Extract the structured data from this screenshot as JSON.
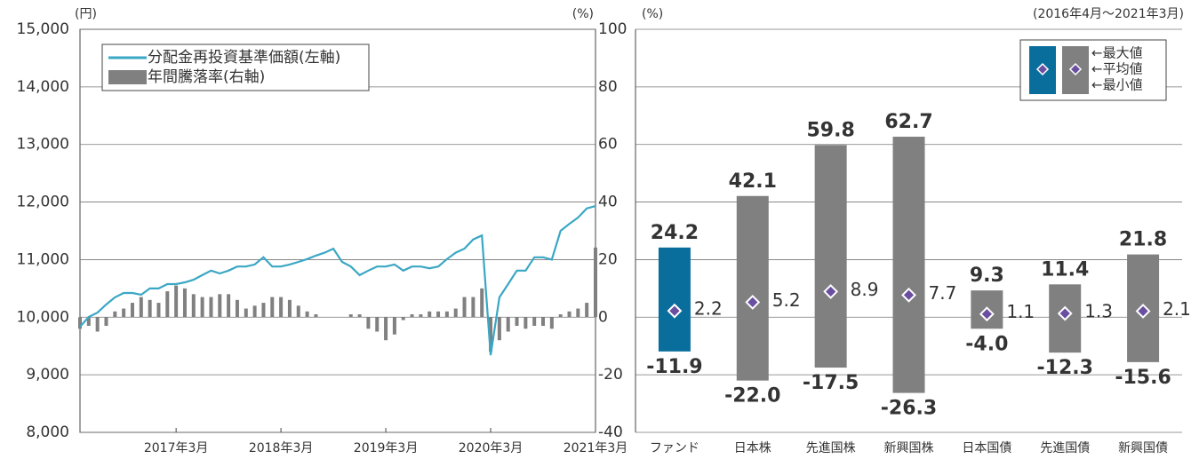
{
  "chart_data": [
    {
      "type": "line",
      "y_unit_label": "(円)",
      "y2_unit_label": "(%)",
      "x": [
        "2016-04",
        "2016-05",
        "2016-06",
        "2016-07",
        "2016-08",
        "2016-09",
        "2016-10",
        "2016-11",
        "2016-12",
        "2017-01",
        "2017-02",
        "2017-03",
        "2017-04",
        "2017-05",
        "2017-06",
        "2017-07",
        "2017-08",
        "2017-09",
        "2017-10",
        "2017-11",
        "2017-12",
        "2018-01",
        "2018-02",
        "2018-03",
        "2018-04",
        "2018-05",
        "2018-06",
        "2018-07",
        "2018-08",
        "2018-09",
        "2018-10",
        "2018-11",
        "2018-12",
        "2019-01",
        "2019-02",
        "2019-03",
        "2019-04",
        "2019-05",
        "2019-06",
        "2019-07",
        "2019-08",
        "2019-09",
        "2019-10",
        "2019-11",
        "2019-12",
        "2020-01",
        "2020-02",
        "2020-03",
        "2020-04",
        "2020-05",
        "2020-06",
        "2020-07",
        "2020-08",
        "2020-09",
        "2020-10",
        "2020-11",
        "2020-12",
        "2021-01",
        "2021-02",
        "2021-03"
      ],
      "xlim": [
        "2016-04",
        "2021-03"
      ],
      "xticks": [
        {
          "value": "2017-03",
          "label": "2017年3月"
        },
        {
          "value": "2018-03",
          "label": "2018年3月"
        },
        {
          "value": "2019-03",
          "label": "2019年3月"
        },
        {
          "value": "2020-03",
          "label": "2020年3月"
        },
        {
          "value": "2021-03",
          "label": "2021年3月"
        }
      ],
      "ylim": [
        8000,
        15000
      ],
      "yticks": [
        {
          "value": 8000,
          "label": "8,000"
        },
        {
          "value": 9000,
          "label": "9,000"
        },
        {
          "value": 10000,
          "label": "10,000"
        },
        {
          "value": 11000,
          "label": "11,000"
        },
        {
          "value": 12000,
          "label": "12,000"
        },
        {
          "value": 13000,
          "label": "13,000"
        },
        {
          "value": 14000,
          "label": "14,000"
        },
        {
          "value": 15000,
          "label": "15,000"
        }
      ],
      "y2lim": [
        -40,
        100
      ],
      "grid": true,
      "series": [
        {
          "name": "分配金再投資基準価額(左軸)",
          "type": "line",
          "color": "#3aa7c4",
          "values": [
            9835,
            10005,
            10080,
            10220,
            10345,
            10420,
            10420,
            10390,
            10500,
            10500,
            10575,
            10575,
            10605,
            10650,
            10730,
            10810,
            10760,
            10810,
            10880,
            10880,
            10915,
            11040,
            10880,
            10880,
            10915,
            10960,
            11010,
            11070,
            11120,
            11190,
            10960,
            10880,
            10730,
            10810,
            10880,
            10880,
            10915,
            10810,
            10880,
            10880,
            10850,
            10880,
            11010,
            11120,
            11190,
            11350,
            11420,
            9340,
            10345,
            10575,
            10810,
            10810,
            11040,
            11040,
            11000,
            11500,
            11620,
            11730,
            11890,
            11930
          ]
        },
        {
          "name": "年間騰落率(右軸)",
          "type": "bar",
          "axis": "y2",
          "color": "#808080",
          "values": [
            -4,
            -3,
            -5,
            -3,
            2,
            3,
            5,
            7,
            6,
            5,
            9,
            11,
            10,
            8,
            7,
            7,
            8,
            8,
            6,
            3,
            4,
            5,
            7,
            7,
            6,
            4,
            2,
            1,
            null,
            null,
            null,
            1,
            1,
            -4,
            -5,
            -8,
            -6,
            -1,
            1,
            1,
            2,
            2,
            2,
            3,
            7,
            7,
            10,
            -12,
            -8,
            -5,
            -3,
            -4,
            -3,
            -3,
            -4,
            1,
            2,
            3,
            5,
            24.2
          ]
        }
      ]
    },
    {
      "type": "range",
      "y_unit_label": "(%)",
      "subtitle": "(2016年4月～2021年3月)",
      "categories": [
        "ファンド",
        "日本株",
        "先進国株",
        "新興国株",
        "日本国債",
        "先進国債",
        "新興国債"
      ],
      "colors": [
        "#0a6e9c",
        "#808080",
        "#808080",
        "#808080",
        "#808080",
        "#808080",
        "#808080"
      ],
      "label_colors": [
        "#0a6e9c",
        "#707070",
        "#707070",
        "#707070",
        "#707070",
        "#707070",
        "#707070"
      ],
      "avg_label_colors": [
        "#4bb3cc",
        "#5b3a8c",
        "#5b3a8c",
        "#5b3a8c",
        "#5b3a8c",
        "#5b3a8c",
        "#5b3a8c"
      ],
      "ylim": [
        -40,
        100
      ],
      "yticks": [
        -40,
        -20,
        0,
        20,
        40,
        60,
        80,
        100
      ],
      "grid": true,
      "series": [
        {
          "name": "←最大値",
          "values": [
            24.2,
            42.1,
            59.8,
            62.7,
            9.3,
            11.4,
            21.8
          ],
          "value_labels": [
            "24.2",
            "42.1",
            "59.8",
            "62.7",
            "9.3",
            "11.4",
            "21.8"
          ]
        },
        {
          "name": "←平均値",
          "values": [
            2.2,
            5.2,
            8.9,
            7.7,
            1.1,
            1.3,
            2.1
          ],
          "value_labels": [
            "2.2",
            "5.2",
            "8.9",
            "7.7",
            "1.1",
            "1.3",
            "2.1"
          ]
        },
        {
          "name": "←最小値",
          "values": [
            -11.9,
            -22.0,
            -17.5,
            -26.3,
            -4.0,
            -12.3,
            -15.6
          ],
          "value_labels": [
            "-11.9",
            "-22.0",
            "-17.5",
            "-26.3",
            "-4.0",
            "-12.3",
            "-15.6"
          ]
        }
      ]
    }
  ]
}
